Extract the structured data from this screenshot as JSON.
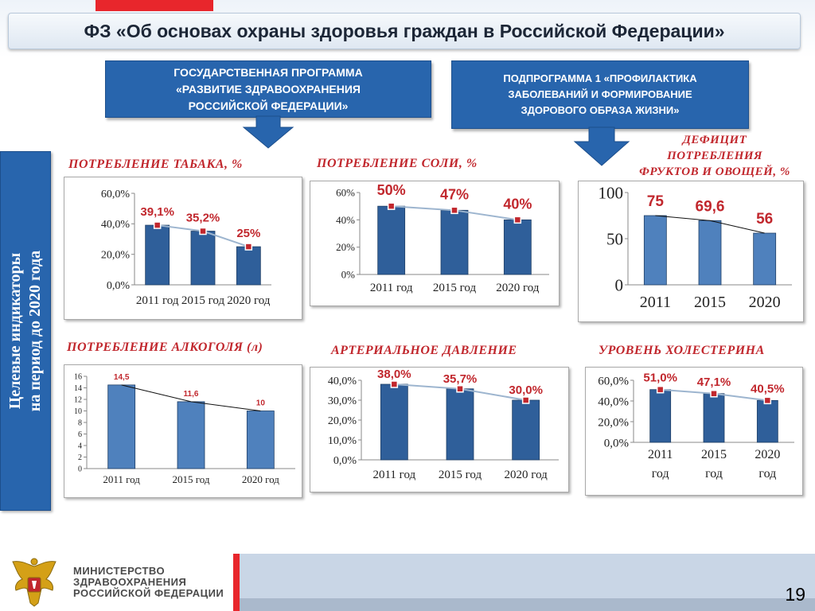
{
  "header": {
    "title": "ФЗ «Об основах охраны здоровья граждан в Российской Федерации»"
  },
  "program": {
    "line1": "ГОСУДАРСТВЕННАЯ ПРОГРАММА",
    "line2": "«РАЗВИТИЕ ЗДРАВООХРАНЕНИЯ",
    "line3": "РОССИЙСКОЙ ФЕДЕРАЦИИ»"
  },
  "subprogram": {
    "line1": "ПОДПРОГРАММА 1 «ПРОФИЛАКТИКА",
    "line2": "ЗАБОЛЕВАНИЙ И ФОРМИРОВАНИЕ",
    "line3": "ЗДОРОВОГО ОБРАЗА ЖИЗНИ»"
  },
  "sidebar": {
    "line1": "Целевые индикаторы",
    "line2": "на период до 2020 года"
  },
  "colors": {
    "bar": "#2f5f9a",
    "bar_light": "#4f81bd",
    "accent_red": "#c1272d",
    "brand_blue": "#2865ad"
  },
  "footer": {
    "ministry_line1": "МИНИСТЕРСТВО",
    "ministry_line2": "ЗДРАВООХРАНЕНИЯ",
    "ministry_line3": "РОССИЙСКОЙ ФЕДЕРАЦИИ",
    "logo_icon": "double-headed-eagle-emblem-icon",
    "page_number": "19"
  },
  "chart_data": [
    {
      "id": "tobacco",
      "type": "bar",
      "title": "ПОТРЕБЛЕНИЕ ТАБАКА, %",
      "categories": [
        "2011 год",
        "2015 год",
        "2020 год"
      ],
      "values": [
        39.1,
        35.2,
        25
      ],
      "data_labels": [
        "39,1%",
        "35,2%",
        "25%"
      ],
      "ylim": [
        0,
        60
      ],
      "yticks": [
        "0,0%",
        "20,0%",
        "40,0%",
        "60,0%"
      ],
      "trendline": true
    },
    {
      "id": "salt",
      "type": "bar",
      "title": "ПОТРЕБЛЕНИЕ СОЛИ, %",
      "categories": [
        "2011 год",
        "2015 год",
        "2020 год"
      ],
      "values": [
        50,
        47,
        40
      ],
      "data_labels": [
        "50%",
        "47%",
        "40%"
      ],
      "ylim": [
        0,
        60
      ],
      "yticks": [
        "0%",
        "20%",
        "40%",
        "60%"
      ],
      "trendline": true
    },
    {
      "id": "fruit",
      "type": "bar",
      "title_lines": [
        "ДЕФИЦИТ",
        "ПОТРЕБЛЕНИЯ",
        "ФРУКТОВ И ОВОЩЕЙ, %"
      ],
      "categories": [
        "2011",
        "2015",
        "2020"
      ],
      "values": [
        75,
        69.6,
        56
      ],
      "data_labels": [
        "75",
        "69,6",
        "56"
      ],
      "ylim": [
        0,
        100
      ],
      "yticks": [
        "0",
        "50",
        "100"
      ],
      "trendline": true
    },
    {
      "id": "alcohol",
      "type": "bar",
      "title": "ПОТРЕБЛЕНИЕ АЛКОГОЛЯ (л)",
      "categories": [
        "2011 год",
        "2015 год",
        "2020 год"
      ],
      "values": [
        14.5,
        11.6,
        10
      ],
      "data_labels": [
        "14,5",
        "11,6",
        "10"
      ],
      "ylim": [
        0,
        16
      ],
      "yticks": [
        "0",
        "2",
        "4",
        "6",
        "8",
        "10",
        "12",
        "14",
        "16"
      ],
      "trendline": true
    },
    {
      "id": "pressure",
      "type": "bar",
      "title": "АРТЕРИАЛЬНОЕ ДАВЛЕНИЕ",
      "categories": [
        "2011 год",
        "2015 год",
        "2020 год"
      ],
      "values": [
        38.0,
        35.7,
        30.0
      ],
      "data_labels": [
        "38,0%",
        "35,7%",
        "30,0%"
      ],
      "ylim": [
        0,
        40
      ],
      "yticks": [
        "0,0%",
        "10,0%",
        "20,0%",
        "30,0%",
        "40,0%"
      ],
      "trendline": true
    },
    {
      "id": "cholesterol",
      "type": "bar",
      "title": "УРОВЕНЬ ХОЛЕСТЕРИНА",
      "categories": [
        "2011 год",
        "2015 год",
        "2020 год"
      ],
      "values": [
        51.0,
        47.1,
        40.5
      ],
      "data_labels": [
        "51,0%",
        "47,1%",
        "40,5%"
      ],
      "ylim": [
        0,
        60
      ],
      "yticks": [
        "0,0%",
        "20,0%",
        "40,0%",
        "60,0%"
      ],
      "trendline": true
    }
  ]
}
